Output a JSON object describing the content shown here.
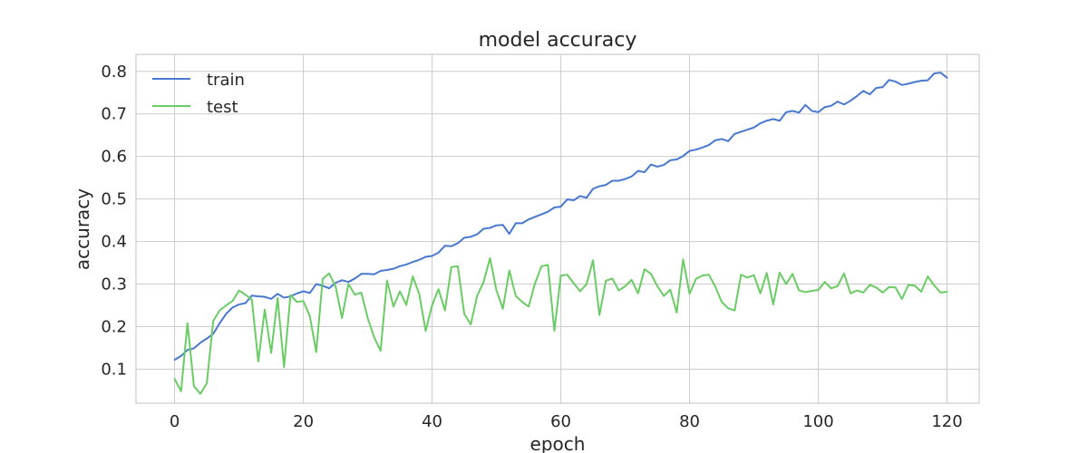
{
  "chart_data": {
    "type": "line",
    "title": "model accuracy",
    "xlabel": "epoch",
    "ylabel": "accuracy",
    "xlim": [
      -6,
      125
    ],
    "ylim": [
      0.02,
      0.84
    ],
    "xticks": [
      0,
      20,
      40,
      60,
      80,
      100,
      120
    ],
    "yticks": [
      0.1,
      0.2,
      0.3,
      0.4,
      0.5,
      0.6,
      0.7,
      0.8
    ],
    "grid": true,
    "legend_position": "top-left",
    "series": [
      {
        "name": "train",
        "color": "#4878d0",
        "values": [
          0.122,
          0.131,
          0.145,
          0.149,
          0.162,
          0.172,
          0.183,
          0.208,
          0.23,
          0.245,
          0.252,
          0.255,
          0.273,
          0.271,
          0.27,
          0.265,
          0.277,
          0.268,
          0.271,
          0.278,
          0.283,
          0.279,
          0.3,
          0.296,
          0.29,
          0.303,
          0.309,
          0.305,
          0.313,
          0.324,
          0.324,
          0.323,
          0.331,
          0.333,
          0.336,
          0.342,
          0.346,
          0.352,
          0.357,
          0.364,
          0.366,
          0.374,
          0.39,
          0.389,
          0.396,
          0.409,
          0.411,
          0.417,
          0.43,
          0.432,
          0.438,
          0.439,
          0.418,
          0.443,
          0.443,
          0.452,
          0.458,
          0.464,
          0.47,
          0.48,
          0.482,
          0.499,
          0.497,
          0.507,
          0.503,
          0.524,
          0.53,
          0.533,
          0.543,
          0.543,
          0.547,
          0.553,
          0.566,
          0.563,
          0.581,
          0.576,
          0.58,
          0.591,
          0.593,
          0.601,
          0.613,
          0.616,
          0.621,
          0.627,
          0.638,
          0.641,
          0.636,
          0.653,
          0.658,
          0.663,
          0.668,
          0.678,
          0.684,
          0.688,
          0.684,
          0.704,
          0.707,
          0.703,
          0.721,
          0.707,
          0.704,
          0.716,
          0.719,
          0.729,
          0.722,
          0.731,
          0.742,
          0.754,
          0.746,
          0.761,
          0.763,
          0.78,
          0.776,
          0.768,
          0.771,
          0.775,
          0.778,
          0.779,
          0.795,
          0.797,
          0.785
        ]
      },
      {
        "name": "test",
        "color": "#6acc64",
        "values": [
          0.077,
          0.048,
          0.208,
          0.06,
          0.042,
          0.067,
          0.213,
          0.238,
          0.25,
          0.26,
          0.285,
          0.275,
          0.263,
          0.118,
          0.24,
          0.138,
          0.267,
          0.105,
          0.274,
          0.258,
          0.26,
          0.225,
          0.14,
          0.312,
          0.325,
          0.295,
          0.22,
          0.3,
          0.275,
          0.28,
          0.22,
          0.175,
          0.143,
          0.308,
          0.247,
          0.283,
          0.251,
          0.318,
          0.277,
          0.19,
          0.25,
          0.288,
          0.238,
          0.34,
          0.342,
          0.23,
          0.205,
          0.272,
          0.305,
          0.361,
          0.285,
          0.242,
          0.332,
          0.272,
          0.258,
          0.247,
          0.302,
          0.342,
          0.345,
          0.19,
          0.32,
          0.322,
          0.302,
          0.283,
          0.3,
          0.356,
          0.227,
          0.308,
          0.313,
          0.285,
          0.295,
          0.31,
          0.278,
          0.335,
          0.324,
          0.295,
          0.272,
          0.287,
          0.233,
          0.358,
          0.277,
          0.312,
          0.32,
          0.322,
          0.294,
          0.258,
          0.243,
          0.238,
          0.322,
          0.315,
          0.321,
          0.278,
          0.326,
          0.252,
          0.327,
          0.3,
          0.324,
          0.285,
          0.281,
          0.284,
          0.286,
          0.305,
          0.29,
          0.295,
          0.325,
          0.278,
          0.285,
          0.28,
          0.298,
          0.292,
          0.28,
          0.293,
          0.292,
          0.265,
          0.298,
          0.296,
          0.282,
          0.318,
          0.297,
          0.28,
          0.282
        ]
      }
    ]
  }
}
